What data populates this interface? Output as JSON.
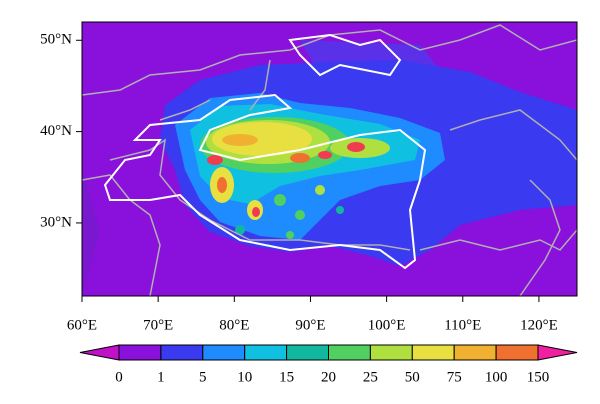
{
  "map": {
    "xlim": [
      60,
      125
    ],
    "ylim": [
      22,
      52
    ],
    "xticks": [
      {
        "value": 60,
        "label": "60°E"
      },
      {
        "value": 70,
        "label": "70°E"
      },
      {
        "value": 80,
        "label": "80°E"
      },
      {
        "value": 90,
        "label": "90°E"
      },
      {
        "value": 100,
        "label": "100°E"
      },
      {
        "value": 110,
        "label": "110°E"
      },
      {
        "value": 120,
        "label": "120°E"
      }
    ],
    "yticks": [
      {
        "value": 30,
        "label": "30°N"
      },
      {
        "value": 40,
        "label": "40°N"
      },
      {
        "value": 50,
        "label": "50°N"
      }
    ],
    "colorbar": {
      "levels": [
        0,
        1,
        5,
        10,
        15,
        20,
        25,
        50,
        75,
        100,
        150
      ],
      "colors": [
        "#c010c8",
        "#8a10dc",
        "#3a3af0",
        "#1e8cff",
        "#10c0e0",
        "#10b8a0",
        "#50d060",
        "#b0e040",
        "#e8e040",
        "#f0b030",
        "#f07030",
        "#f03c50",
        "#f020a0"
      ]
    }
  }
}
